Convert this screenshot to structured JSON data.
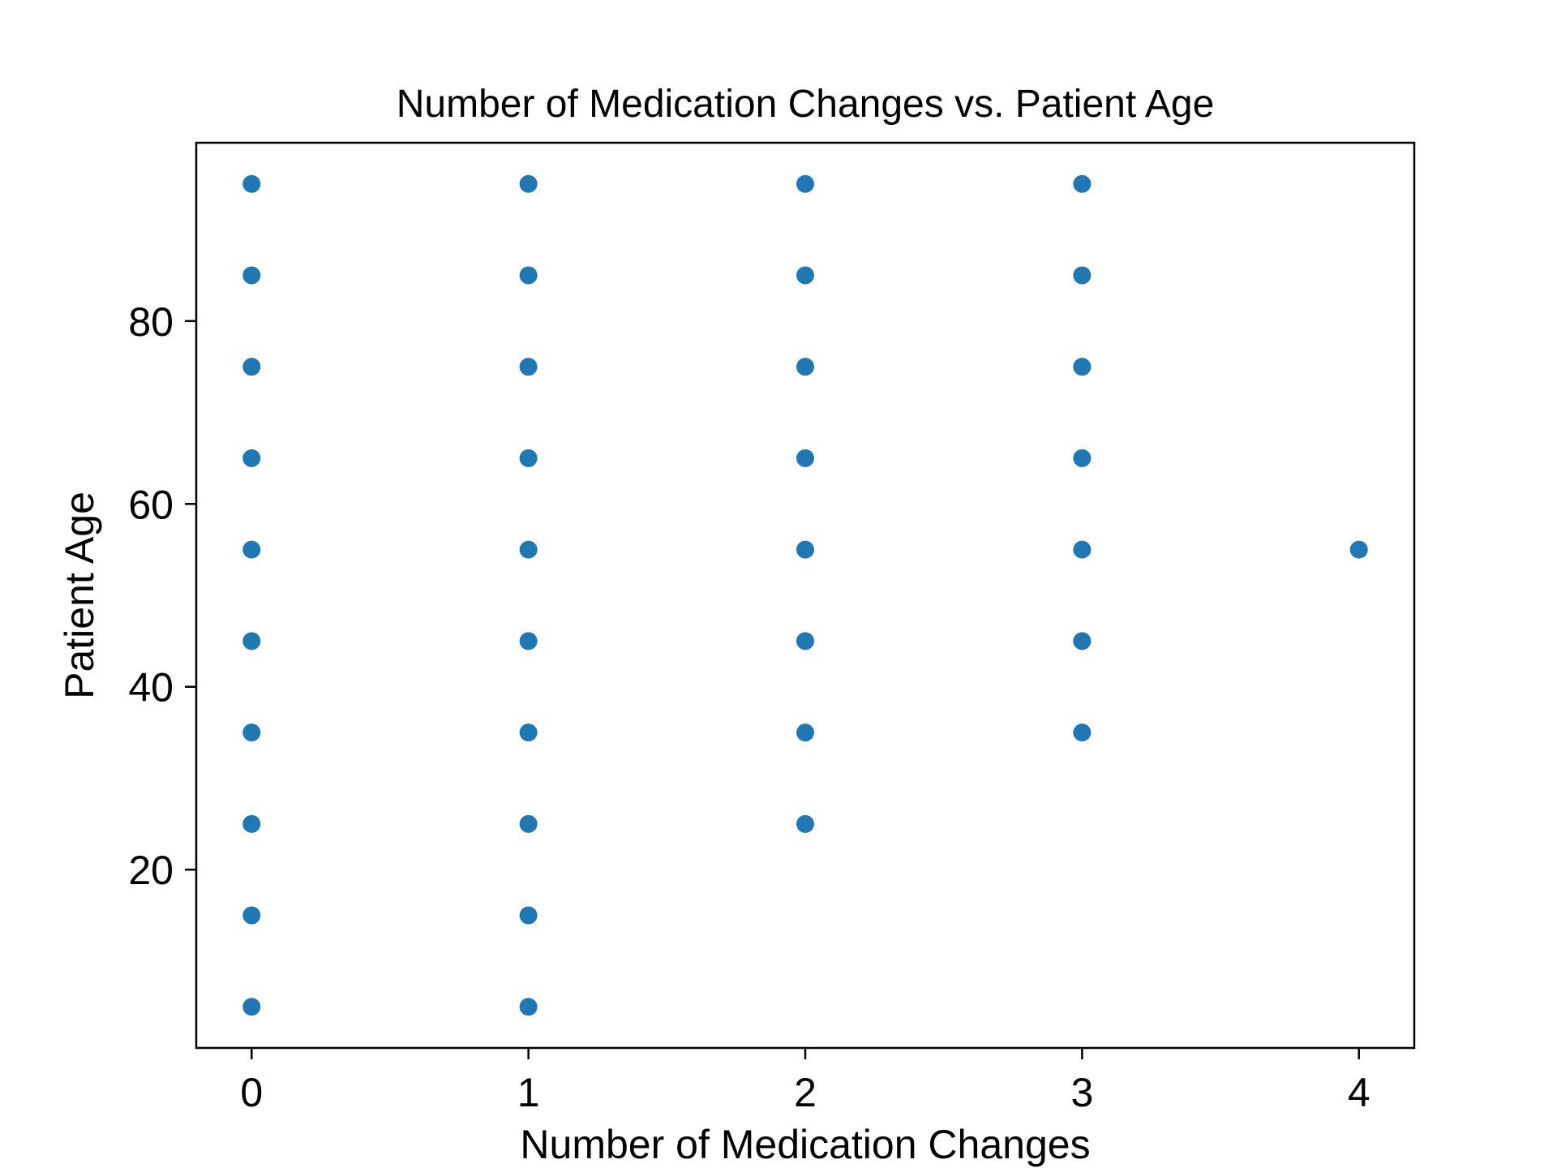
{
  "chart_data": {
    "type": "scatter",
    "title": "Number of Medication Changes vs. Patient Age",
    "xlabel": "Number of Medication Changes",
    "ylabel": "Patient Age",
    "xlim": [
      -0.2,
      4.2
    ],
    "ylim": [
      0.5,
      99.5
    ],
    "xticks": [
      0,
      1,
      2,
      3,
      4
    ],
    "yticks": [
      20,
      40,
      60,
      80
    ],
    "grid": false,
    "marker_color": "#1f77b4",
    "series": [
      {
        "points": [
          {
            "x": 0,
            "y": 5
          },
          {
            "x": 0,
            "y": 15
          },
          {
            "x": 0,
            "y": 25
          },
          {
            "x": 0,
            "y": 35
          },
          {
            "x": 0,
            "y": 45
          },
          {
            "x": 0,
            "y": 55
          },
          {
            "x": 0,
            "y": 65
          },
          {
            "x": 0,
            "y": 75
          },
          {
            "x": 0,
            "y": 85
          },
          {
            "x": 0,
            "y": 95
          },
          {
            "x": 1,
            "y": 5
          },
          {
            "x": 1,
            "y": 15
          },
          {
            "x": 1,
            "y": 25
          },
          {
            "x": 1,
            "y": 35
          },
          {
            "x": 1,
            "y": 45
          },
          {
            "x": 1,
            "y": 55
          },
          {
            "x": 1,
            "y": 65
          },
          {
            "x": 1,
            "y": 75
          },
          {
            "x": 1,
            "y": 85
          },
          {
            "x": 1,
            "y": 95
          },
          {
            "x": 2,
            "y": 25
          },
          {
            "x": 2,
            "y": 35
          },
          {
            "x": 2,
            "y": 45
          },
          {
            "x": 2,
            "y": 55
          },
          {
            "x": 2,
            "y": 65
          },
          {
            "x": 2,
            "y": 75
          },
          {
            "x": 2,
            "y": 85
          },
          {
            "x": 2,
            "y": 95
          },
          {
            "x": 3,
            "y": 35
          },
          {
            "x": 3,
            "y": 45
          },
          {
            "x": 3,
            "y": 55
          },
          {
            "x": 3,
            "y": 65
          },
          {
            "x": 3,
            "y": 75
          },
          {
            "x": 3,
            "y": 85
          },
          {
            "x": 3,
            "y": 95
          },
          {
            "x": 4,
            "y": 55
          }
        ]
      }
    ]
  }
}
